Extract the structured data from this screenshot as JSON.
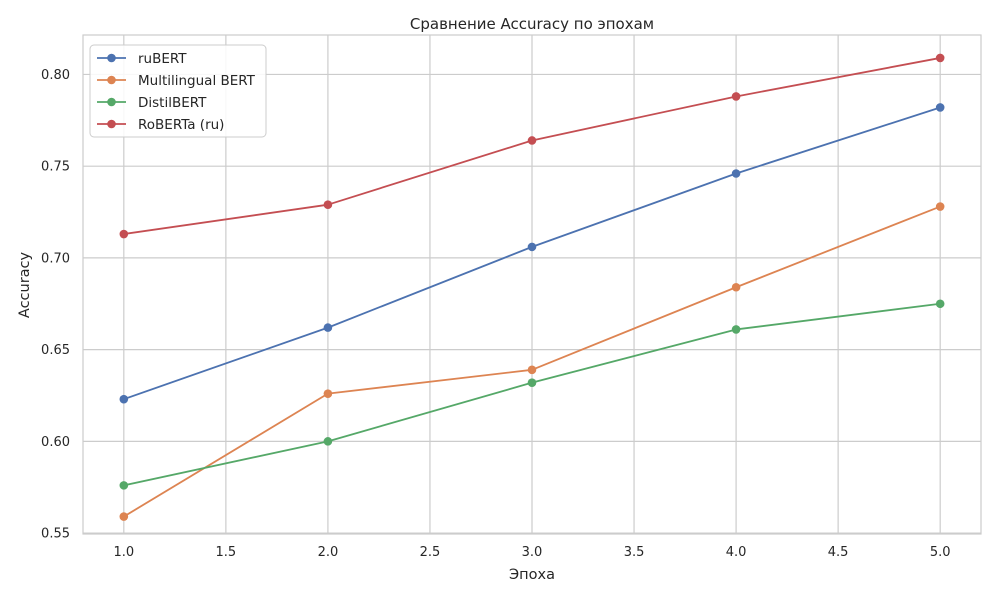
{
  "chart_data": {
    "type": "line",
    "title": "Сравнение Accuracy по эпохам",
    "xlabel": "Эпоха",
    "ylabel": "Accuracy",
    "x": [
      1.0,
      2.0,
      3.0,
      4.0,
      5.0
    ],
    "xlim": [
      0.8,
      5.2
    ],
    "ylim": [
      0.5495,
      0.8215
    ],
    "x_ticks": [
      "1.0",
      "1.5",
      "2.0",
      "2.5",
      "3.0",
      "3.5",
      "4.0",
      "4.5",
      "5.0"
    ],
    "y_ticks": [
      "0.55",
      "0.60",
      "0.65",
      "0.70",
      "0.75",
      "0.80"
    ],
    "grid": true,
    "legend_position": "top-left",
    "series": [
      {
        "name": "ruBERT",
        "color": "#4c72b0",
        "values": [
          0.623,
          0.662,
          0.706,
          0.746,
          0.782
        ]
      },
      {
        "name": "Multilingual BERT",
        "color": "#dd8452",
        "values": [
          0.559,
          0.626,
          0.639,
          0.684,
          0.728
        ]
      },
      {
        "name": "DistilBERT",
        "color": "#55a868",
        "values": [
          0.576,
          0.6,
          0.632,
          0.661,
          0.675
        ]
      },
      {
        "name": "RoBERTa (ru)",
        "color": "#c44e52",
        "values": [
          0.713,
          0.729,
          0.764,
          0.788,
          0.809
        ]
      }
    ]
  }
}
